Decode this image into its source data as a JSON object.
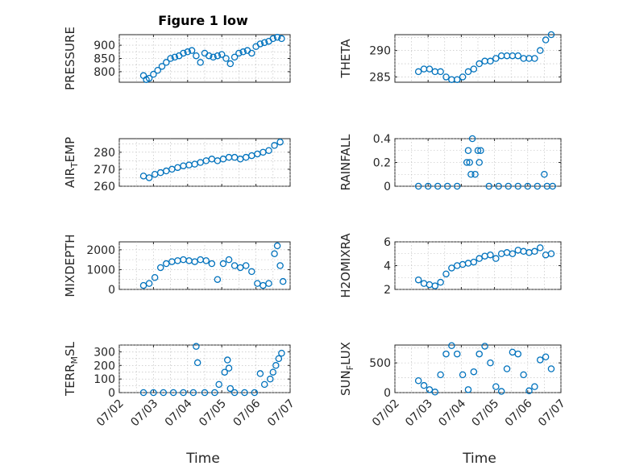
{
  "figure": {
    "title": "Figure 1 low",
    "xlabel": "Time"
  },
  "chart_data": [
    {
      "type": "scatter",
      "ylabel": "PRESSURE",
      "yticks": [
        800,
        850,
        900
      ],
      "ylim": [
        760,
        940
      ],
      "x": [
        "07/02 17:00",
        "07/02 19:00",
        "07/02 21:00",
        "07/03 00:00",
        "07/03 03:00",
        "07/03 06:00",
        "07/03 09:00",
        "07/03 12:00",
        "07/03 15:00",
        "07/03 18:00",
        "07/03 21:00",
        "07/04 00:00",
        "07/04 03:00",
        "07/04 06:00",
        "07/04 09:00",
        "07/04 12:00",
        "07/04 15:00",
        "07/04 18:00",
        "07/04 21:00",
        "07/05 00:00",
        "07/05 03:00",
        "07/05 06:00",
        "07/05 09:00",
        "07/05 12:00",
        "07/05 15:00",
        "07/05 18:00",
        "07/05 21:00",
        "07/06 00:00",
        "07/06 03:00",
        "07/06 06:00",
        "07/06 09:00",
        "07/06 12:00",
        "07/06 15:00",
        "07/06 18:00"
      ],
      "y": [
        785,
        770,
        775,
        790,
        805,
        820,
        835,
        850,
        855,
        860,
        870,
        875,
        880,
        860,
        835,
        870,
        860,
        855,
        860,
        865,
        850,
        830,
        855,
        870,
        875,
        880,
        870,
        895,
        905,
        910,
        915,
        925,
        930,
        925
      ]
    },
    {
      "type": "scatter",
      "ylabel": "THETA",
      "yticks": [
        285,
        290
      ],
      "ylim": [
        284,
        293
      ],
      "x": [
        "07/02 17:00",
        "07/02 21:00",
        "07/03 01:00",
        "07/03 05:00",
        "07/03 09:00",
        "07/03 13:00",
        "07/03 17:00",
        "07/03 21:00",
        "07/04 01:00",
        "07/04 05:00",
        "07/04 09:00",
        "07/04 13:00",
        "07/04 17:00",
        "07/04 21:00",
        "07/05 01:00",
        "07/05 05:00",
        "07/05 09:00",
        "07/05 13:00",
        "07/05 17:00",
        "07/05 21:00",
        "07/06 01:00",
        "07/06 05:00",
        "07/06 09:00",
        "07/06 13:00",
        "07/06 17:00"
      ],
      "y": [
        286,
        286.5,
        286.5,
        286,
        286,
        285,
        284.5,
        284.5,
        285,
        286,
        286.5,
        287.5,
        288,
        288,
        288.5,
        289,
        289,
        289,
        289,
        288.5,
        288.5,
        288.5,
        290,
        292,
        293
      ]
    },
    {
      "type": "scatter",
      "ylabel": "AIR_TEMP",
      "yticks": [
        260,
        270,
        280
      ],
      "ylim": [
        260,
        288
      ],
      "x": [
        "07/02 17:00",
        "07/02 21:00",
        "07/03 01:00",
        "07/03 05:00",
        "07/03 09:00",
        "07/03 13:00",
        "07/03 17:00",
        "07/03 21:00",
        "07/04 01:00",
        "07/04 05:00",
        "07/04 09:00",
        "07/04 13:00",
        "07/04 17:00",
        "07/04 21:00",
        "07/05 01:00",
        "07/05 05:00",
        "07/05 09:00",
        "07/05 13:00",
        "07/05 17:00",
        "07/05 21:00",
        "07/06 01:00",
        "07/06 05:00",
        "07/06 09:00",
        "07/06 13:00",
        "07/06 17:00"
      ],
      "y": [
        266,
        265,
        267,
        268,
        269,
        270,
        271,
        272,
        272.5,
        273,
        274,
        275,
        276,
        275,
        276,
        277,
        277,
        276,
        277,
        278,
        279,
        280,
        281,
        284,
        286
      ]
    },
    {
      "type": "scatter",
      "ylabel": "RAINFALL",
      "yticks": [
        0,
        0.2,
        0.4
      ],
      "ylim": [
        0,
        0.4
      ],
      "x": [
        "07/02 17:00",
        "07/03 00:00",
        "07/03 07:00",
        "07/03 14:00",
        "07/03 21:00",
        "07/04 04:00",
        "07/04 05:00",
        "07/04 06:00",
        "07/04 07:00",
        "07/04 08:00",
        "07/04 10:00",
        "07/04 12:00",
        "07/04 13:00",
        "07/04 14:00",
        "07/04 20:00",
        "07/05 03:00",
        "07/05 10:00",
        "07/05 17:00",
        "07/06 00:00",
        "07/06 07:00",
        "07/06 12:00",
        "07/06 14:00",
        "07/06 18:00"
      ],
      "y": [
        0,
        0,
        0,
        0,
        0,
        0.2,
        0.3,
        0.2,
        0.1,
        0.4,
        0.1,
        0.3,
        0.2,
        0.3,
        0,
        0,
        0,
        0,
        0,
        0,
        0.1,
        0,
        0
      ]
    },
    {
      "type": "scatter",
      "ylabel": "MIXDEPTH",
      "yticks": [
        0,
        1000,
        2000
      ],
      "ylim": [
        0,
        2400
      ],
      "x": [
        "07/02 17:00",
        "07/02 21:00",
        "07/03 01:00",
        "07/03 05:00",
        "07/03 09:00",
        "07/03 13:00",
        "07/03 17:00",
        "07/03 21:00",
        "07/04 01:00",
        "07/04 05:00",
        "07/04 09:00",
        "07/04 13:00",
        "07/04 17:00",
        "07/04 21:00",
        "07/05 01:00",
        "07/05 05:00",
        "07/05 09:00",
        "07/05 13:00",
        "07/05 17:00",
        "07/05 21:00",
        "07/06 01:00",
        "07/06 05:00",
        "07/06 09:00",
        "07/06 13:00",
        "07/06 15:00",
        "07/06 17:00",
        "07/06 19:00"
      ],
      "y": [
        200,
        300,
        600,
        1100,
        1300,
        1400,
        1450,
        1500,
        1450,
        1400,
        1500,
        1450,
        1300,
        500,
        1300,
        1500,
        1200,
        1100,
        1200,
        900,
        300,
        200,
        300,
        1800,
        2200,
        1200,
        400
      ]
    },
    {
      "type": "scatter",
      "ylabel": "H2OMIXRA",
      "yticks": [
        2,
        4,
        6
      ],
      "ylim": [
        2,
        6
      ],
      "x": [
        "07/02 17:00",
        "07/02 21:00",
        "07/03 01:00",
        "07/03 05:00",
        "07/03 09:00",
        "07/03 13:00",
        "07/03 17:00",
        "07/03 21:00",
        "07/04 01:00",
        "07/04 05:00",
        "07/04 09:00",
        "07/04 13:00",
        "07/04 17:00",
        "07/04 21:00",
        "07/05 01:00",
        "07/05 05:00",
        "07/05 09:00",
        "07/05 13:00",
        "07/05 17:00",
        "07/05 21:00",
        "07/06 01:00",
        "07/06 05:00",
        "07/06 09:00",
        "07/06 13:00",
        "07/06 17:00"
      ],
      "y": [
        2.8,
        2.5,
        2.4,
        2.3,
        2.6,
        3.3,
        3.8,
        4.0,
        4.1,
        4.2,
        4.3,
        4.6,
        4.8,
        4.9,
        4.6,
        5.0,
        5.1,
        5.0,
        5.3,
        5.2,
        5.1,
        5.2,
        5.5,
        4.9,
        5.0
      ]
    },
    {
      "type": "scatter",
      "ylabel": "TERR_MSL",
      "yticks": [
        0,
        100,
        200,
        300
      ],
      "ylim": [
        0,
        350
      ],
      "x": [
        "07/02 17:00",
        "07/03 00:00",
        "07/03 07:00",
        "07/03 14:00",
        "07/03 21:00",
        "07/04 04:00",
        "07/04 06:00",
        "07/04 07:00",
        "07/04 12:00",
        "07/04 19:00",
        "07/04 22:00",
        "07/05 02:00",
        "07/05 04:00",
        "07/05 05:00",
        "07/05 06:00",
        "07/05 09:00",
        "07/05 16:00",
        "07/05 23:00",
        "07/06 03:00",
        "07/06 06:00",
        "07/06 10:00",
        "07/06 12:00",
        "07/06 14:00",
        "07/06 16:00",
        "07/06 18:00"
      ],
      "y": [
        0,
        0,
        0,
        0,
        0,
        0,
        340,
        220,
        0,
        0,
        60,
        150,
        240,
        180,
        30,
        0,
        0,
        0,
        140,
        60,
        100,
        150,
        200,
        250,
        290
      ]
    },
    {
      "type": "scatter",
      "ylabel": "SUN_FLUX",
      "yticks": [
        0,
        500
      ],
      "ylim": [
        0,
        800
      ],
      "x": [
        "07/02 17:00",
        "07/02 21:00",
        "07/03 01:00",
        "07/03 05:00",
        "07/03 09:00",
        "07/03 13:00",
        "07/03 17:00",
        "07/03 21:00",
        "07/04 01:00",
        "07/04 05:00",
        "07/04 09:00",
        "07/04 13:00",
        "07/04 17:00",
        "07/04 21:00",
        "07/05 01:00",
        "07/05 05:00",
        "07/05 09:00",
        "07/05 13:00",
        "07/05 17:00",
        "07/05 21:00",
        "07/06 01:00",
        "07/06 05:00",
        "07/06 09:00",
        "07/06 13:00",
        "07/06 17:00"
      ],
      "y": [
        200,
        120,
        50,
        10,
        300,
        650,
        790,
        650,
        300,
        50,
        350,
        650,
        780,
        500,
        100,
        20,
        400,
        680,
        650,
        300,
        30,
        100,
        550,
        600,
        400
      ]
    }
  ],
  "x_axis": {
    "ticks": [
      "07/02",
      "07/03",
      "07/04",
      "07/05",
      "07/06",
      "07/07"
    ],
    "xlim": [
      "07/02 00:00",
      "07/07 00:00"
    ]
  }
}
